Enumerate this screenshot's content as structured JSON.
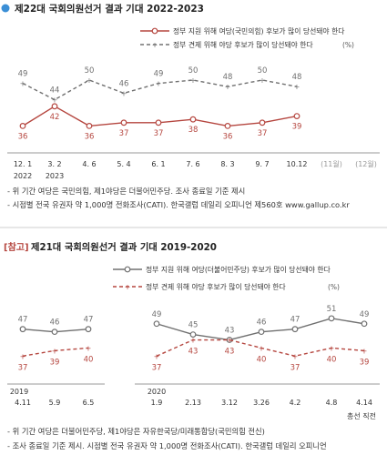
{
  "colors": {
    "support": "#b5463f",
    "check": "#707070",
    "blue": "#3b8fd6",
    "gray_text": "#6a6a6a",
    "ref_tag": "#b5463f"
  },
  "top": {
    "title": "제22대 국회의원선거 결과 기대 2022-2023",
    "legend_support": "정부 지원 위해 여당(국민의힘) 후보가 많이 당선돼야 한다",
    "legend_check": "정부 견제 위해 야당 후보가 많이 당선돼야 한다",
    "legend_unit": "(%)",
    "note1": "- 위 기간 여당은 국민의힘, 제1야당은 더불어민주당. 조사 종료일 기준 제시",
    "note2": "- 시점별 전국 유권자 약 1,000명 전화조사(CATI). 한국갤럽 데일리 오피니언 제560호 www.gallup.co.kr"
  },
  "bottom": {
    "ref_tag": "[참고]",
    "title": "제21대 국회의원선거 결과 기대 2019-2020",
    "legend_support": "정부 지원 위해 여당(더불어민주당) 후보가 많이 당선돼야 한다",
    "legend_check": "정부 견제 위해 야당 후보가 많이 당선돼야 한다",
    "legend_unit": "(%)",
    "note1": "- 위 기간 여당은 더불어민주당, 제1야당은 자유한국당/미래통합당(국민의힘 전신)",
    "note2": "- 조사 종료일 기준 제시. 시점별 전국 유권자 약 1,000명 전화조사(CATI). 한국갤럽 데일리 오피니언"
  },
  "chart_data": [
    {
      "type": "line",
      "title": "제22대 국회의원선거 결과 기대 2022-2023",
      "categories": [
        "12. 1",
        "3. 2",
        "4. 6",
        "5. 4",
        "6. 1",
        "7. 6",
        "8. 3",
        "9. 7",
        "10.12",
        "(11월)",
        "(12월)"
      ],
      "year_labels": [
        "2022",
        "2023"
      ],
      "series": [
        {
          "name": "정부 견제 위해 야당 후보가 많이 당선돼야 한다",
          "style": "dashed",
          "values": [
            49,
            44,
            50,
            46,
            49,
            50,
            48,
            50,
            48,
            null,
            null
          ]
        },
        {
          "name": "정부 지원 위해 여당(국민의힘) 후보가 많이 당선돼야 한다",
          "style": "solid",
          "values": [
            36,
            42,
            36,
            37,
            37,
            38,
            36,
            37,
            39,
            null,
            null
          ]
        }
      ],
      "ylim": [
        30,
        55
      ]
    },
    {
      "type": "line",
      "title": "제21대 국회의원선거 결과 기대 2019-2020",
      "categories": [
        "4.11",
        "5.9",
        "6.5",
        "1.9",
        "2.13",
        "3.12",
        "3.26",
        "4.2",
        "4.8",
        "4.14"
      ],
      "year_labels": [
        "2019",
        "2020"
      ],
      "extra_label": "총선 직전",
      "series": [
        {
          "name": "정부 지원 위해 여당(더불어민주당) 후보가 많이 당선돼야 한다",
          "style": "solid",
          "values": [
            47,
            46,
            47,
            49,
            45,
            43,
            46,
            47,
            51,
            49
          ]
        },
        {
          "name": "정부 견제 위해 야당 후보가 많이 당선돼야 한다",
          "style": "dashed",
          "values": [
            37,
            39,
            40,
            37,
            43,
            43,
            40,
            37,
            40,
            39
          ]
        }
      ],
      "ylim": [
        30,
        55
      ]
    }
  ]
}
